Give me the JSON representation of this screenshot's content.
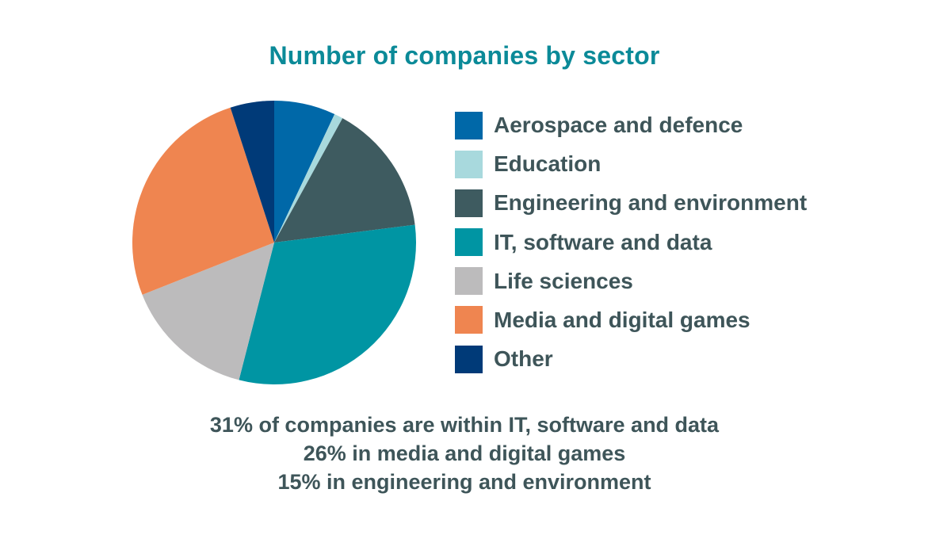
{
  "chart_data": {
    "type": "pie",
    "title": "Number of companies by sector",
    "legend_position": "right",
    "slices": [
      {
        "label": "Aerospace and defence",
        "value": 7,
        "color": "#0068A8"
      },
      {
        "label": "Education",
        "value": 1,
        "color": "#A8D9DD"
      },
      {
        "label": "Engineering and environment",
        "value": 15,
        "color": "#3E5B60"
      },
      {
        "label": "IT, software and data",
        "value": 31,
        "color": "#0095A3"
      },
      {
        "label": "Life sciences",
        "value": 15,
        "color": "#BCBBBC"
      },
      {
        "label": "Media and digital games",
        "value": 26,
        "color": "#EF8550"
      },
      {
        "label": "Other",
        "value": 5,
        "color": "#003A78"
      }
    ]
  },
  "notes": [
    "31% of companies are within IT, software and data",
    "26% in media and digital games",
    "15% in engineering and environment"
  ]
}
